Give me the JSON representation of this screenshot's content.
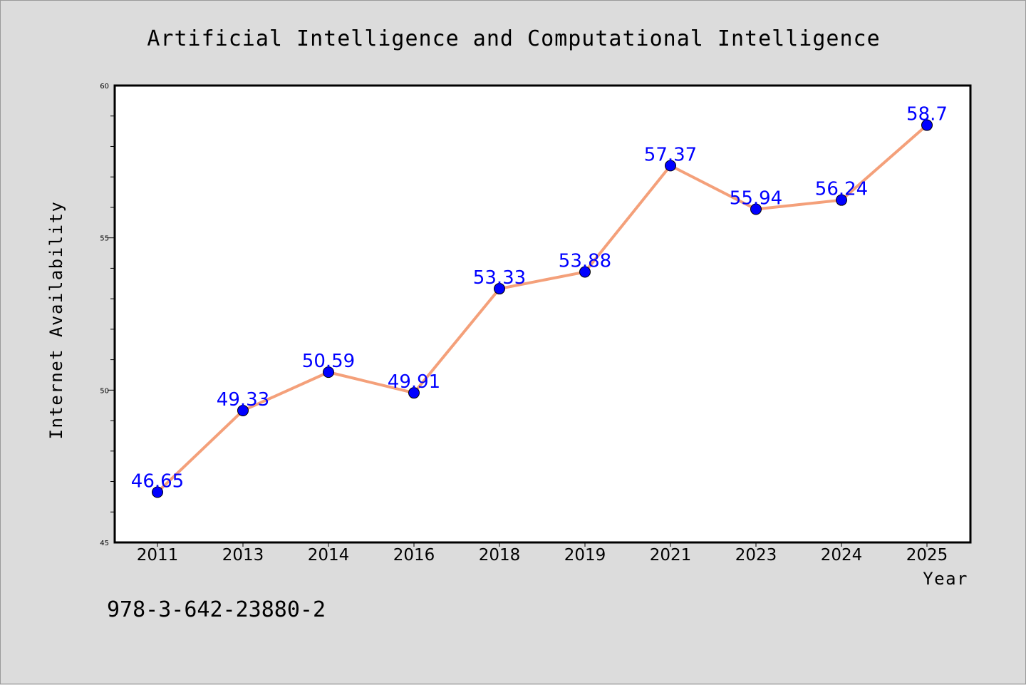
{
  "chart_data": {
    "type": "line",
    "title": "Artificial Intelligence and Computational Intelligence",
    "xlabel": "Year",
    "ylabel": "Internet Availability",
    "categories": [
      "2011",
      "2013",
      "2014",
      "2016",
      "2018",
      "2019",
      "2021",
      "2023",
      "2024",
      "2025"
    ],
    "values": [
      46.65,
      49.33,
      50.59,
      49.91,
      53.33,
      53.88,
      57.37,
      55.94,
      56.24,
      58.7
    ],
    "data_labels": [
      "46.65",
      "49.33",
      "50.59",
      "49.91",
      "53.33",
      "53.88",
      "57.37",
      "55.94",
      "56.24",
      "58.7"
    ],
    "ylim": [
      45,
      60
    ],
    "yticks": [
      "45",
      "50",
      "55",
      "60"
    ],
    "grid": false,
    "line_color": "#f4a07a",
    "marker_color": "#0000ff",
    "label_color": "#0000ff",
    "background_color": "#dcdcdc",
    "plot_background_color": "#ffffff"
  },
  "footer": {
    "isbn": "978-3-642-23880-2"
  }
}
